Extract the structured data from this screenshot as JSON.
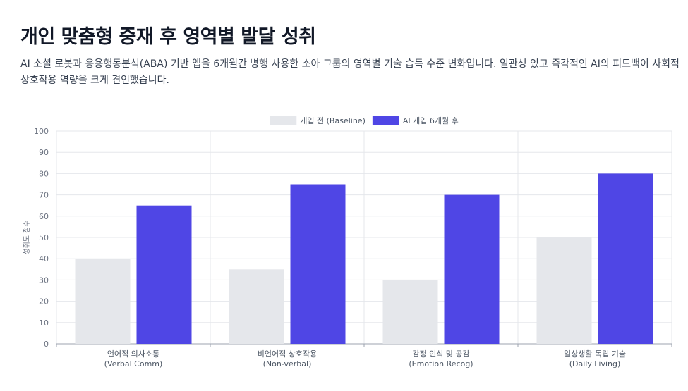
{
  "header": {
    "title": "개인 맞춤형 중재 후 영역별 발달 성취",
    "description": "AI 소셜 로봇과 응용행동분석(ABA) 기반 앱을 6개월간 병행 사용한 소아 그룹의 영역별 기술 습득 수준 변화입니다. 일관성 있고 즉각적인 AI의 피드백이 사회적 상호작용 역량을 크게 견인했습니다."
  },
  "colors": {
    "baseline": "#e5e7eb",
    "after": "#4f46e5"
  },
  "chart_data": {
    "type": "bar",
    "categories": [
      [
        "언어적 의사소통",
        "(Verbal Comm)"
      ],
      [
        "비언어적 상호작용",
        "(Non-verbal)"
      ],
      [
        "감정 인식 및 공감",
        "(Emotion Recog)"
      ],
      [
        "일상생활 독립 기술",
        "(Daily Living)"
      ]
    ],
    "series": [
      {
        "name": "개입 전 (Baseline)",
        "values": [
          40,
          35,
          30,
          50
        ]
      },
      {
        "name": "AI 개입 6개월 후",
        "values": [
          65,
          75,
          70,
          80
        ]
      }
    ],
    "ylabel": "성취도 점수",
    "ylim": [
      0,
      100
    ],
    "yticks": [
      0,
      10,
      20,
      30,
      40,
      50,
      60,
      70,
      80,
      90,
      100
    ],
    "grid": true,
    "legend_position": "top-center"
  }
}
